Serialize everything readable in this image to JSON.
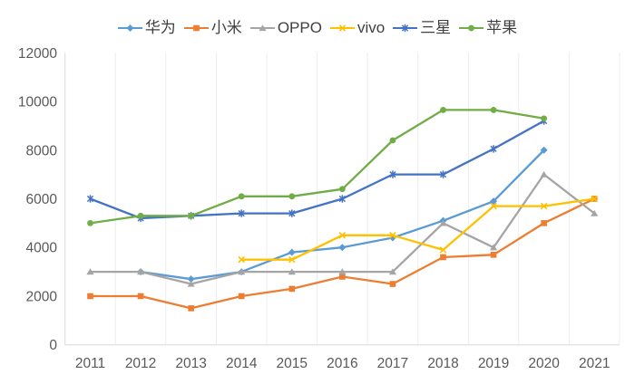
{
  "chart_data": {
    "type": "line",
    "title": "",
    "xlabel": "",
    "ylabel": "",
    "categories": [
      "2011",
      "2012",
      "2013",
      "2014",
      "2015",
      "2016",
      "2017",
      "2018",
      "2019",
      "2020",
      "2021"
    ],
    "series": [
      {
        "id": "huawei",
        "name": "华为",
        "color": "#5B9BD5",
        "marker": "diamond",
        "values": [
          null,
          3000,
          2700,
          3000,
          3800,
          4000,
          4400,
          5100,
          5900,
          8000,
          null
        ]
      },
      {
        "id": "xiaomi",
        "name": "小米",
        "color": "#ED7D31",
        "marker": "square",
        "values": [
          2000,
          2000,
          1500,
          2000,
          2300,
          2800,
          2500,
          3600,
          3700,
          5000,
          6000
        ]
      },
      {
        "id": "oppo",
        "name": "OPPO",
        "color": "#A5A5A5",
        "marker": "triangle",
        "values": [
          3000,
          3000,
          2500,
          3000,
          3000,
          3000,
          3000,
          5000,
          4000,
          7000,
          5400
        ]
      },
      {
        "id": "vivo",
        "name": "vivo",
        "color": "#FFC000",
        "marker": "x",
        "values": [
          null,
          null,
          null,
          3500,
          3500,
          4500,
          4500,
          3900,
          5700,
          5700,
          6000
        ]
      },
      {
        "id": "samsung",
        "name": "三星",
        "color": "#4472C4",
        "marker": "star",
        "values": [
          6000,
          5200,
          5300,
          5400,
          5400,
          6000,
          7000,
          7000,
          8050,
          9200,
          null
        ]
      },
      {
        "id": "apple",
        "name": "苹果",
        "color": "#70AD47",
        "marker": "circle",
        "values": [
          5000,
          5300,
          5300,
          6100,
          6100,
          6400,
          8400,
          9650,
          9650,
          9300,
          null
        ]
      }
    ],
    "ylim": [
      0,
      12000
    ],
    "yticks": [
      0,
      2000,
      4000,
      6000,
      8000,
      10000,
      12000
    ],
    "legend_position": "top",
    "grid": "vertical-only",
    "axis_color": "#D9D9D9",
    "gridline_color": "#ECECEC",
    "tick_label_color": "#595959",
    "legend_text_color": "#3f3f3f",
    "background_color": "#FFFFFF"
  }
}
